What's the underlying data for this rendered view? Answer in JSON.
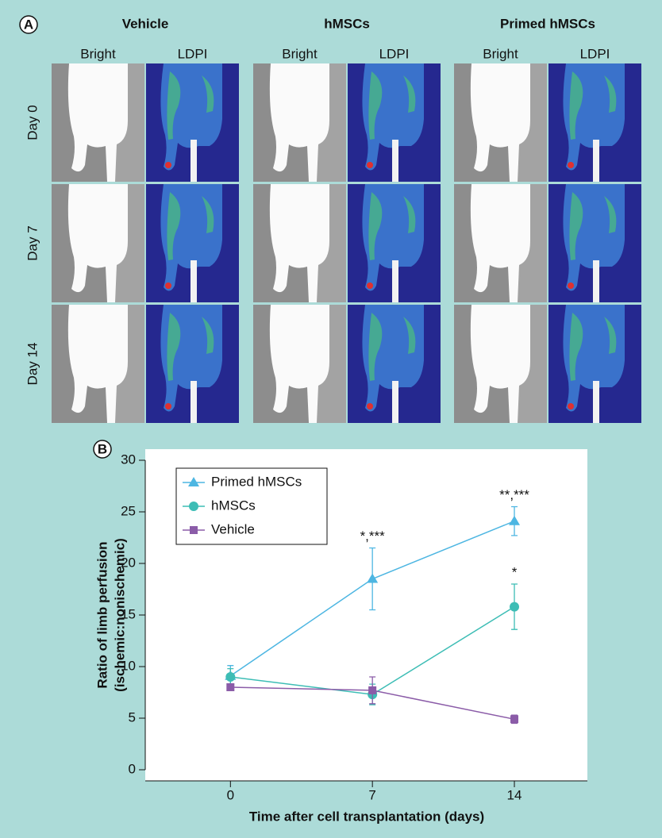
{
  "panel_a": {
    "label": "A",
    "columns": [
      {
        "title": "Vehicle",
        "subtitles": [
          "Bright",
          "LDPI"
        ]
      },
      {
        "title": "hMSCs",
        "subtitles": [
          "Bright",
          "LDPI"
        ]
      },
      {
        "title": "Primed hMSCs",
        "subtitles": [
          "Bright",
          "LDPI"
        ]
      }
    ],
    "rows": [
      "Day 0",
      "Day 7",
      "Day 14"
    ]
  },
  "chart_data": {
    "type": "line",
    "panel_label": "B",
    "x_label": "Time after cell transplantation (days)",
    "y_label": [
      "Ratio of limb perfusion",
      "(ischemic:nonischemic)"
    ],
    "x": [
      0,
      7,
      14
    ],
    "xlim": [
      -4.2,
      17.6
    ],
    "xticks": [
      0,
      7,
      14
    ],
    "ylim": [
      0,
      30
    ],
    "yticks": [
      0,
      5,
      10,
      15,
      20,
      25,
      30
    ],
    "legend": "upper left",
    "series": [
      {
        "name": "Primed hMSCs",
        "color": "#4db6e2",
        "marker": "triangle",
        "values": [
          9.1,
          18.5,
          24.1
        ],
        "errors": [
          1.0,
          3.0,
          1.4
        ],
        "annotations": [
          null,
          "*,***",
          "**,***"
        ]
      },
      {
        "name": "hMSCs",
        "color": "#3dbdb5",
        "marker": "circle",
        "values": [
          9.0,
          7.3,
          15.8
        ],
        "errors": [
          0.8,
          1.0,
          2.2
        ],
        "annotations": [
          null,
          null,
          "*"
        ]
      },
      {
        "name": "Vehicle",
        "color": "#8b5ca8",
        "marker": "square",
        "values": [
          8.0,
          7.7,
          4.9
        ],
        "errors": [
          0.2,
          1.3,
          0.4
        ],
        "annotations": [
          null,
          null,
          null
        ]
      }
    ]
  }
}
